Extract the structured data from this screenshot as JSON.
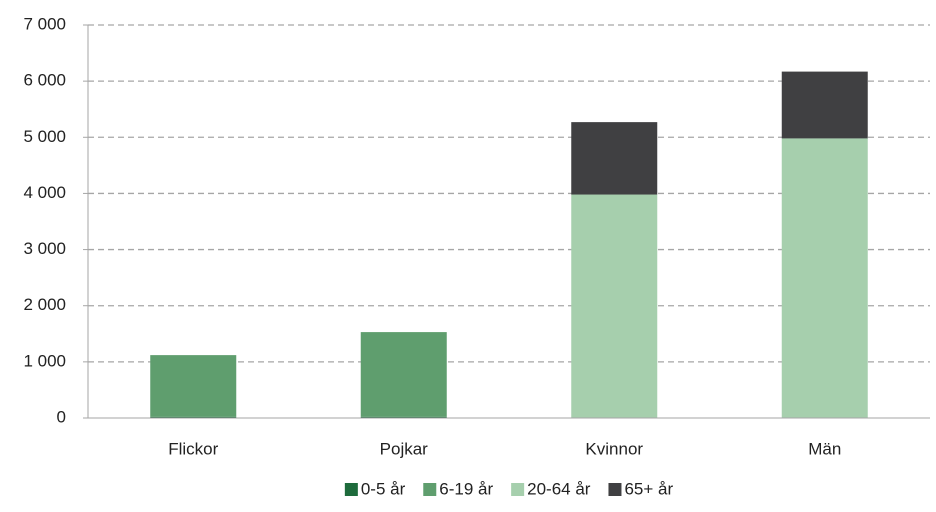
{
  "chart_data": {
    "type": "stacked_bar",
    "categories": [
      "Flickor",
      "Pojkar",
      "Kvinnor",
      "Män"
    ],
    "series": [
      {
        "name": "0-5 år",
        "color": "#1e6b3c",
        "values": [
          20,
          20,
          0,
          0
        ]
      },
      {
        "name": "6-19 år",
        "color": "#5f9e6e",
        "values": [
          1100,
          1510,
          0,
          0
        ]
      },
      {
        "name": "20-64 år",
        "color": "#a6cfad",
        "values": [
          0,
          0,
          3980,
          4980
        ]
      },
      {
        "name": "65+ år",
        "color": "#404042",
        "values": [
          0,
          0,
          1290,
          1190
        ]
      }
    ],
    "ylim": [
      0,
      7000
    ],
    "yticks": [
      0,
      {
        "value": 1000,
        "label": "1 000"
      },
      {
        "value": 2000,
        "label": "2 000"
      },
      {
        "value": 3000,
        "label": "3 000"
      },
      {
        "value": 4000,
        "label": "4 000"
      },
      {
        "value": 5000,
        "label": "5 000"
      },
      {
        "value": 6000,
        "label": "6 000"
      },
      {
        "value": 7000,
        "label": "7 000"
      }
    ],
    "grid": true,
    "legend": "bottom"
  }
}
